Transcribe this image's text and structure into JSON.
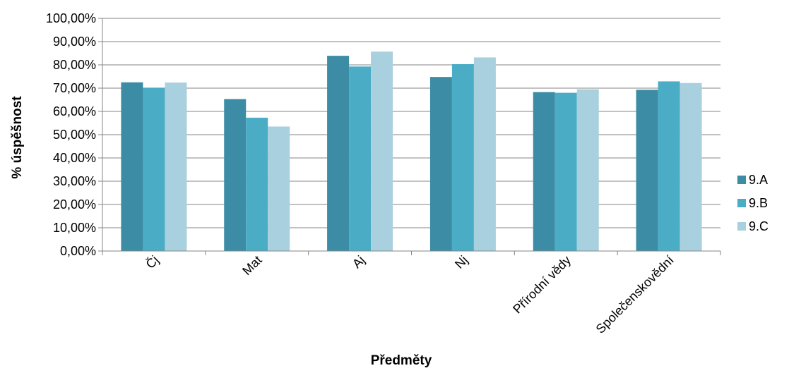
{
  "chart_data": {
    "type": "bar",
    "title": "",
    "xlabel": "Předměty",
    "ylabel": "% úspěšnost",
    "ylim": [
      0,
      100
    ],
    "y_ticks": [
      "0,00%",
      "10,00%",
      "20,00%",
      "30,00%",
      "40,00%",
      "50,00%",
      "60,00%",
      "70,00%",
      "80,00%",
      "90,00%",
      "100,00%"
    ],
    "grid": true,
    "legend_position": "right",
    "categories": [
      "Čj",
      "Mat",
      "Aj",
      "Nj",
      "Přírodní vědy",
      "Společenskovědní"
    ],
    "series": [
      {
        "name": "9.A",
        "color": "#3b8ca4",
        "values": [
          72.5,
          65.3,
          83.9,
          74.8,
          68.3,
          69.3
        ]
      },
      {
        "name": "9.B",
        "color": "#4bacc6",
        "values": [
          70.2,
          57.3,
          79.3,
          80.3,
          68.0,
          72.9
        ]
      },
      {
        "name": "9.C",
        "color": "#a9d0de",
        "values": [
          72.4,
          53.5,
          85.7,
          83.2,
          69.5,
          72.2
        ]
      }
    ]
  }
}
